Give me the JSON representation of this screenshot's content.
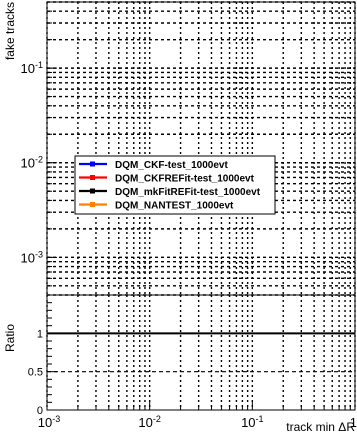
{
  "chart_data": [
    {
      "type": "line",
      "ylabel": "fake tracks",
      "xscale": "log",
      "yscale": "log",
      "xlim": [
        0.001,
        1
      ],
      "ylim": [
        0.0004,
        0.5
      ],
      "grid": true,
      "y_tick_labels": [
        "10^-1",
        "10^-2",
        "10^-3"
      ],
      "legend": {
        "placement": "center-left",
        "entries": [
          {
            "name": "DQM_CKF-test_1000evt",
            "color": "#0000ff"
          },
          {
            "name": "DQM_CKFREFit-test_1000evt",
            "color": "#ff0000"
          },
          {
            "name": "DQM_mkFitREFit-test_1000evt",
            "color": "#000000"
          },
          {
            "name": "DQM_NANTEST_1000evt",
            "color": "#ff7f00"
          }
        ]
      },
      "series": []
    },
    {
      "type": "line",
      "ylabel": "Ratio",
      "xlabel": "track min  ΔR",
      "xscale": "log",
      "xlim": [
        0.001,
        1
      ],
      "ylim": [
        0,
        1.5
      ],
      "grid": true,
      "y_tick_labels": [
        "0",
        "0.5",
        "1"
      ],
      "x_tick_labels": [
        "10^-3",
        "10^-2",
        "10^-1",
        "1"
      ],
      "reference_line": 1,
      "series": []
    }
  ]
}
